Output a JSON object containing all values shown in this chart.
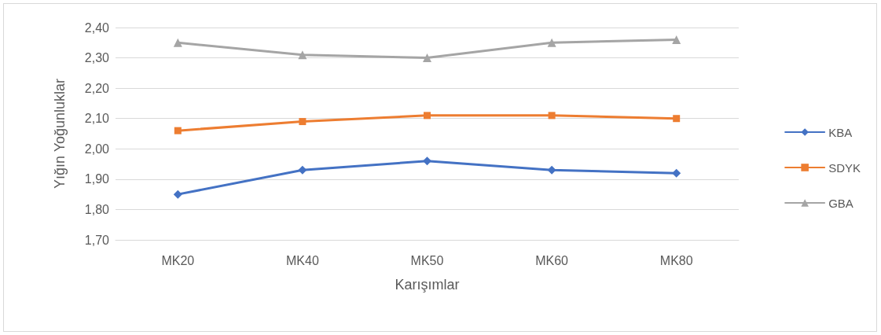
{
  "chart_data": {
    "type": "line",
    "xlabel": "Karışımlar",
    "ylabel": "Yığın Yoğunluklar",
    "categories": [
      "MK20",
      "MK40",
      "MK50",
      "MK60",
      "MK80"
    ],
    "series": [
      {
        "name": "KBA",
        "color": "#4472c4",
        "marker": "diamond",
        "values": [
          1.85,
          1.93,
          1.96,
          1.93,
          1.92
        ]
      },
      {
        "name": "SDYK",
        "color": "#ed7d31",
        "marker": "square",
        "values": [
          2.06,
          2.09,
          2.11,
          2.11,
          2.1
        ]
      },
      {
        "name": "GBA",
        "color": "#a5a5a5",
        "marker": "triangle",
        "values": [
          2.35,
          2.31,
          2.3,
          2.35,
          2.36
        ]
      }
    ],
    "ylim": [
      1.7,
      2.4
    ],
    "yticks": [
      {
        "value": 1.7,
        "label": "1,70"
      },
      {
        "value": 1.8,
        "label": "1,80"
      },
      {
        "value": 1.9,
        "label": "1,90"
      },
      {
        "value": 2.0,
        "label": "2,00"
      },
      {
        "value": 2.1,
        "label": "2,10"
      },
      {
        "value": 2.2,
        "label": "2,20"
      },
      {
        "value": 2.3,
        "label": "2,30"
      },
      {
        "value": 2.4,
        "label": "2,40"
      }
    ],
    "grid": "y",
    "legend": "right",
    "line_style": "solid"
  }
}
